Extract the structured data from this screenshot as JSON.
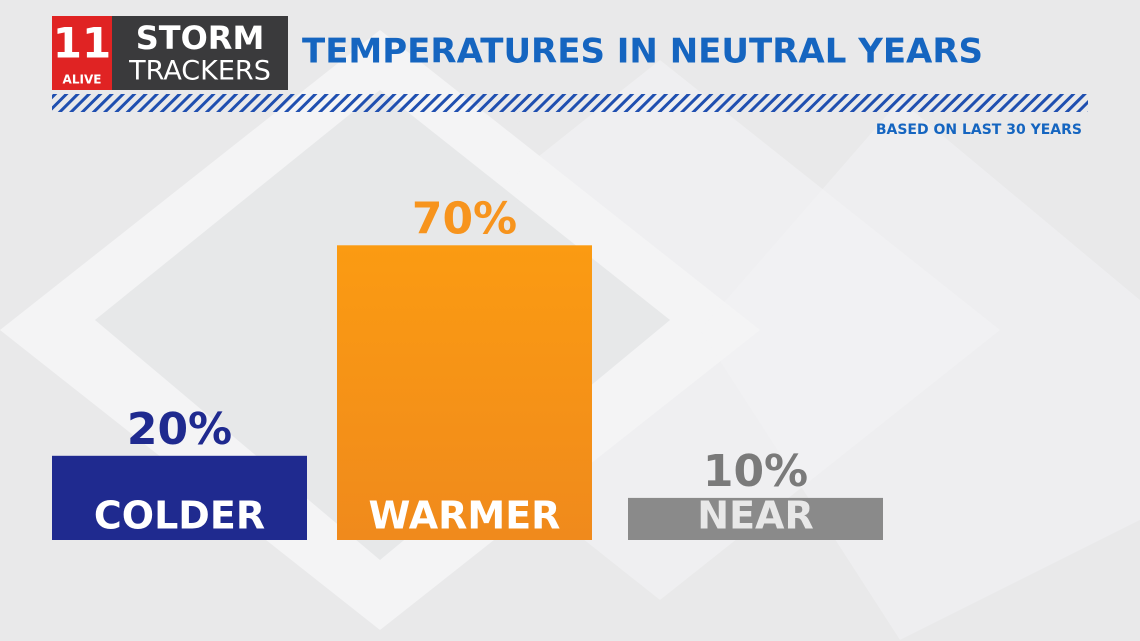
{
  "chart_data": {
    "type": "bar",
    "title": "TEMPERATURES IN NEUTRAL YEARS",
    "subtitle": "BASED ON LAST 30 YEARS",
    "categories": [
      "COLDER",
      "WARMER",
      "NEAR"
    ],
    "values": [
      20,
      70,
      10
    ],
    "value_labels": [
      "20%",
      "70%",
      "10%"
    ],
    "colors": [
      "#1f2a8f",
      "#f7941d",
      "#8a8a8a"
    ]
  },
  "logo": {
    "number": "11",
    "station": "ALIVE",
    "line1": "STORM",
    "line2": "TRACKERS"
  }
}
